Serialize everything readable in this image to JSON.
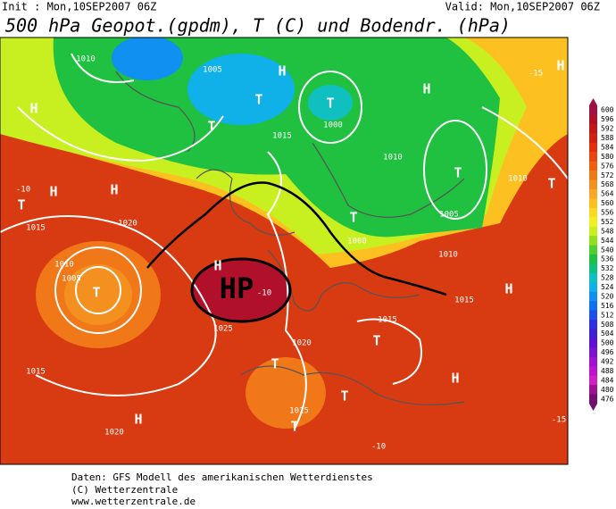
{
  "header": {
    "init": "Init : Mon,10SEP2007 06Z",
    "valid": "Valid: Mon,10SEP2007 06Z",
    "title": "500 hPa Geopot.(gpdm), T (C) und Bodendr. (hPa)"
  },
  "map": {
    "annotation": "HP",
    "labels": [
      "1010",
      "H",
      "-10",
      "H",
      "T",
      "H",
      "1020",
      "1015",
      "1010",
      "1005",
      "T",
      "H",
      "1025",
      "-10",
      "1015",
      "T",
      "1020",
      "H",
      "1020",
      "1015",
      "T",
      "T",
      "1000",
      "T",
      "1005",
      "T",
      "T",
      "1015",
      "H",
      "1010",
      "T",
      "1000",
      "H",
      "-15",
      "H",
      "T",
      "1005",
      "1010",
      "H",
      "H",
      "T",
      "1015",
      "-10",
      "-15",
      "T",
      "1010",
      "1015"
    ]
  },
  "colorscale": {
    "levels": [
      600,
      596,
      592,
      588,
      584,
      580,
      576,
      572,
      568,
      564,
      560,
      556,
      552,
      548,
      544,
      540,
      536,
      532,
      528,
      524,
      520,
      516,
      512,
      508,
      504,
      500,
      496,
      492,
      488,
      484,
      480,
      476
    ],
    "colors": [
      "#a01040",
      "#b0102a",
      "#c01818",
      "#d02010",
      "#e03010",
      "#e84810",
      "#f06010",
      "#f07818",
      "#f49020",
      "#f8a828",
      "#fcc020",
      "#fcd820",
      "#f0f020",
      "#c8f020",
      "#90e020",
      "#50d030",
      "#20c040",
      "#10c080",
      "#10c0c0",
      "#10b0e8",
      "#1090f0",
      "#1070f0",
      "#2050e8",
      "#3030e0",
      "#4020d0",
      "#6010d0",
      "#8010d0",
      "#a010d0",
      "#c010d0",
      "#d020c0",
      "#a01090",
      "#701070"
    ]
  },
  "footer": {
    "line1": "Daten: GFS Modell des amerikanischen Wetterdienstes",
    "line2": "(C) Wetterzentrale",
    "line3": "www.wetterzentrale.de"
  }
}
